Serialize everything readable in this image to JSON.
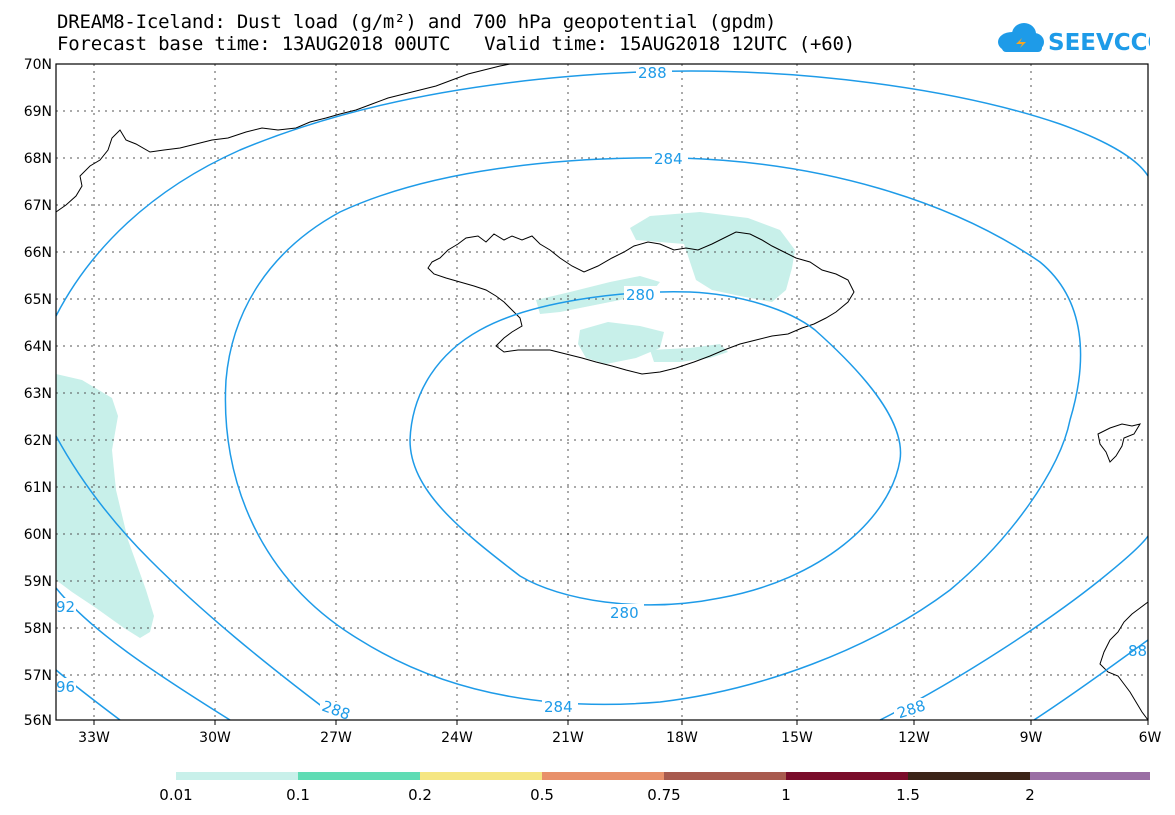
{
  "title_line1": "DREAM8-Iceland: Dust load (g/m²) and 700 hPa geopotential (gpdm)",
  "title_line2": "Forecast base time: 13AUG2018 00UTC   Valid time: 15AUG2018 12UTC (+60)",
  "logo_text": "SEEVCCC",
  "lat_labels": [
    "70N",
    "69N",
    "68N",
    "67N",
    "66N",
    "65N",
    "64N",
    "63N",
    "62N",
    "61N",
    "60N",
    "59N",
    "58N",
    "57N",
    "56N"
  ],
  "lon_labels": [
    "33W",
    "30W",
    "27W",
    "24W",
    "21W",
    "18W",
    "15W",
    "12W",
    "9W",
    "6W"
  ],
  "contour_labels": [
    "288",
    "284",
    "280",
    "280",
    "284",
    "288",
    "288",
    "92",
    "96",
    "88"
  ],
  "colorbar": {
    "colors": [
      "#c8f0ea",
      "#5fdcb4",
      "#f5e682",
      "#e8906a",
      "#a85a4e",
      "#7a0c2a",
      "#3c2418",
      "#9a6ea4"
    ],
    "labels": [
      "0.01",
      "0.1",
      "0.2",
      "0.5",
      "0.75",
      "1",
      "1.5",
      "2"
    ]
  },
  "colors": {
    "contour": "#1e9be8",
    "dust": "#c8f0ea",
    "coast": "#000000"
  }
}
